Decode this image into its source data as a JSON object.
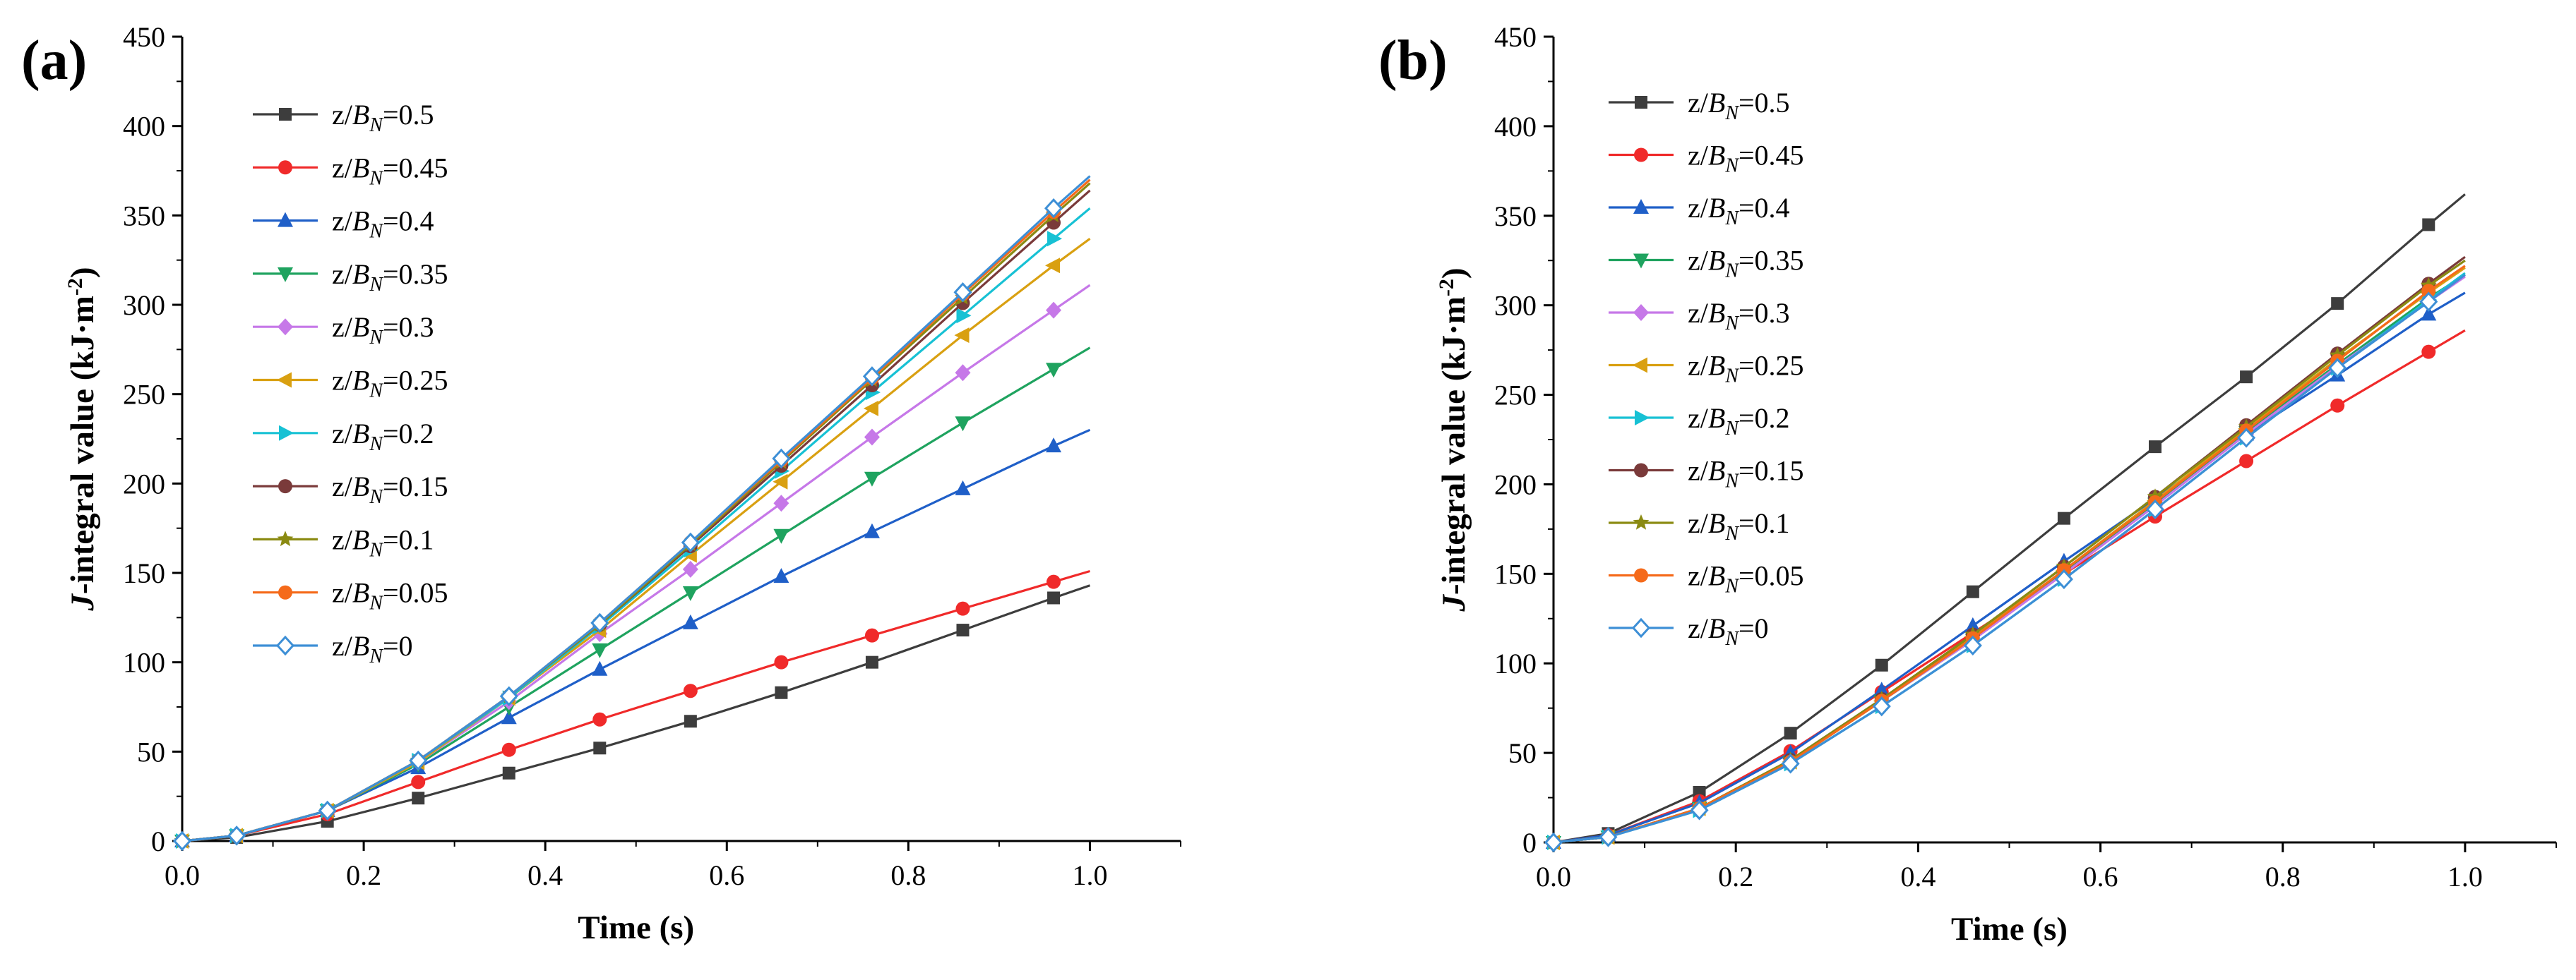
{
  "chart_data": [
    {
      "type": "line",
      "panel_label": "(a)",
      "title": "",
      "xlabel": "Time (s)",
      "ylabel_italic": "J",
      "ylabel_main": "-integral value (kJ·m",
      "ylabel_sup": "-2",
      "ylabel_close": ")",
      "xlim": [
        0,
        1.1
      ],
      "ylim": [
        0,
        450
      ],
      "x_ticks": [
        0.0,
        0.2,
        0.4,
        0.6,
        0.8,
        1.0
      ],
      "x_tick_labels": [
        "0.0",
        "0.2",
        "0.4",
        "0.6",
        "0.8",
        "1.0"
      ],
      "y_ticks": [
        0,
        50,
        100,
        150,
        200,
        250,
        300,
        350,
        400,
        450
      ],
      "y_tick_labels": [
        "0",
        "50",
        "100",
        "150",
        "200",
        "250",
        "300",
        "350",
        "400",
        "450"
      ],
      "x": [
        0,
        0.06,
        0.16,
        0.26,
        0.36,
        0.46,
        0.56,
        0.66,
        0.76,
        0.86,
        0.96,
        1.0
      ],
      "legend_position": "top-left",
      "series": [
        {
          "legend_prefix": "z/",
          "legend_var": "B",
          "legend_sub": "N",
          "legend_suffix": "=0.5",
          "color": "#3d3d3d",
          "marker": "square",
          "values": [
            0,
            2,
            11,
            24,
            38,
            52,
            67,
            83,
            100,
            118,
            136,
            143
          ]
        },
        {
          "legend_prefix": "z/",
          "legend_var": "B",
          "legend_sub": "N",
          "legend_suffix": "=0.45",
          "color": "#f02a2a",
          "marker": "circle",
          "values": [
            0,
            3,
            15,
            33,
            51,
            68,
            84,
            100,
            115,
            130,
            145,
            151
          ]
        },
        {
          "legend_prefix": "z/",
          "legend_var": "B",
          "legend_sub": "N",
          "legend_suffix": "=0.4",
          "color": "#1f5fc8",
          "marker": "triangle-up",
          "values": [
            0,
            3,
            17,
            41,
            69,
            96,
            122,
            148,
            173,
            197,
            221,
            230
          ]
        },
        {
          "legend_prefix": "z/",
          "legend_var": "B",
          "legend_sub": "N",
          "legend_suffix": "=0.35",
          "color": "#1fa35f",
          "marker": "triangle-down",
          "values": [
            0,
            3,
            17,
            43,
            75,
            107,
            139,
            171,
            203,
            234,
            264,
            276
          ]
        },
        {
          "legend_prefix": "z/",
          "legend_var": "B",
          "legend_sub": "N",
          "legend_suffix": "=0.3",
          "color": "#c678e8",
          "marker": "diamond",
          "values": [
            0,
            3,
            17,
            44,
            78,
            116,
            152,
            189,
            226,
            262,
            297,
            311
          ]
        },
        {
          "legend_prefix": "z/",
          "legend_var": "B",
          "legend_sub": "N",
          "legend_suffix": "=0.25",
          "color": "#d9a011",
          "marker": "triangle-left",
          "values": [
            0,
            3,
            17,
            44,
            80,
            118,
            160,
            201,
            242,
            283,
            322,
            337
          ]
        },
        {
          "legend_prefix": "z/",
          "legend_var": "B",
          "legend_sub": "N",
          "legend_suffix": "=0.2",
          "color": "#17c1d4",
          "marker": "triangle-right",
          "values": [
            0,
            3,
            17,
            45,
            80,
            120,
            163,
            207,
            251,
            294,
            337,
            354
          ]
        },
        {
          "legend_prefix": "z/",
          "legend_var": "B",
          "legend_sub": "N",
          "legend_suffix": "=0.15",
          "color": "#7a3a3a",
          "marker": "circle",
          "values": [
            0,
            3,
            17,
            45,
            81,
            121,
            165,
            210,
            255,
            301,
            346,
            364
          ]
        },
        {
          "legend_prefix": "z/",
          "legend_var": "B",
          "legend_sub": "N",
          "legend_suffix": "=0.1",
          "color": "#8a8a12",
          "marker": "star",
          "values": [
            0,
            3,
            17,
            45,
            81,
            121,
            166,
            212,
            258,
            304,
            350,
            368
          ]
        },
        {
          "legend_prefix": "z/",
          "legend_var": "B",
          "legend_sub": "N",
          "legend_suffix": "=0.05",
          "color": "#f56a1a",
          "marker": "circle",
          "values": [
            0,
            3,
            17,
            45,
            81,
            122,
            167,
            213,
            259,
            306,
            352,
            370
          ]
        },
        {
          "legend_prefix": "z/",
          "legend_var": "B",
          "legend_sub": "N",
          "legend_suffix": "=0",
          "color": "#3d8fd6",
          "marker": "diamond-open",
          "values": [
            0,
            3,
            17,
            45,
            81,
            122,
            167,
            214,
            260,
            307,
            354,
            372
          ]
        }
      ]
    },
    {
      "type": "line",
      "panel_label": "(b)",
      "title": "",
      "xlabel": "Time (s)",
      "ylabel_italic": "J",
      "ylabel_main": "-integral value (kJ·m",
      "ylabel_sup": "-2",
      "ylabel_close": ")",
      "xlim": [
        0,
        1.1
      ],
      "ylim": [
        0,
        450
      ],
      "x_ticks": [
        0.0,
        0.2,
        0.4,
        0.6,
        0.8,
        1.0
      ],
      "x_tick_labels": [
        "0.0",
        "0.2",
        "0.4",
        "0.6",
        "0.8",
        "1.0"
      ],
      "y_ticks": [
        0,
        50,
        100,
        150,
        200,
        250,
        300,
        350,
        400,
        450
      ],
      "y_tick_labels": [
        "0",
        "50",
        "100",
        "150",
        "200",
        "250",
        "300",
        "350",
        "400",
        "450"
      ],
      "x": [
        0,
        0.06,
        0.16,
        0.26,
        0.36,
        0.46,
        0.56,
        0.66,
        0.76,
        0.86,
        0.96,
        1.0
      ],
      "legend_position": "top-left",
      "series": [
        {
          "legend_prefix": "z/",
          "legend_var": "B",
          "legend_sub": "N",
          "legend_suffix": "=0.5",
          "color": "#3d3d3d",
          "marker": "square",
          "values": [
            0,
            5,
            28,
            61,
            99,
            140,
            181,
            221,
            260,
            301,
            345,
            362
          ]
        },
        {
          "legend_prefix": "z/",
          "legend_var": "B",
          "legend_sub": "N",
          "legend_suffix": "=0.45",
          "color": "#f02a2a",
          "marker": "circle",
          "values": [
            0,
            4,
            23,
            51,
            84,
            117,
            150,
            182,
            213,
            244,
            274,
            286
          ]
        },
        {
          "legend_prefix": "z/",
          "legend_var": "B",
          "legend_sub": "N",
          "legend_suffix": "=0.4",
          "color": "#1f5fc8",
          "marker": "triangle-up",
          "values": [
            0,
            4,
            22,
            50,
            85,
            121,
            157,
            192,
            228,
            261,
            295,
            307
          ]
        },
        {
          "legend_prefix": "z/",
          "legend_var": "B",
          "legend_sub": "N",
          "legend_suffix": "=0.35",
          "color": "#1fa35f",
          "marker": "triangle-down",
          "values": [
            0,
            3,
            19,
            45,
            79,
            113,
            151,
            189,
            229,
            267,
            304,
            317
          ]
        },
        {
          "legend_prefix": "z/",
          "legend_var": "B",
          "legend_sub": "N",
          "legend_suffix": "=0.3",
          "color": "#c678e8",
          "marker": "diamond",
          "values": [
            0,
            3,
            19,
            45,
            79,
            113,
            150,
            188,
            228,
            266,
            302,
            316
          ]
        },
        {
          "legend_prefix": "z/",
          "legend_var": "B",
          "legend_sub": "N",
          "legend_suffix": "=0.25",
          "color": "#d9a011",
          "marker": "triangle-left",
          "values": [
            0,
            3,
            19,
            45,
            79,
            115,
            152,
            191,
            231,
            270,
            307,
            321
          ]
        },
        {
          "legend_prefix": "z/",
          "legend_var": "B",
          "legend_sub": "N",
          "legend_suffix": "=0.2",
          "color": "#17c1d4",
          "marker": "triangle-right",
          "values": [
            0,
            3,
            18,
            44,
            76,
            110,
            147,
            186,
            226,
            265,
            303,
            318
          ]
        },
        {
          "legend_prefix": "z/",
          "legend_var": "B",
          "legend_sub": "N",
          "legend_suffix": "=0.15",
          "color": "#7a3a3a",
          "marker": "circle",
          "values": [
            0,
            3,
            19,
            46,
            80,
            116,
            154,
            193,
            233,
            273,
            312,
            327
          ]
        },
        {
          "legend_prefix": "z/",
          "legend_var": "B",
          "legend_sub": "N",
          "legend_suffix": "=0.1",
          "color": "#8a8a12",
          "marker": "star",
          "values": [
            0,
            3,
            19,
            46,
            80,
            116,
            154,
            193,
            232,
            272,
            311,
            325
          ]
        },
        {
          "legend_prefix": "z/",
          "legend_var": "B",
          "legend_sub": "N",
          "legend_suffix": "=0.05",
          "color": "#f56a1a",
          "marker": "circle",
          "values": [
            0,
            3,
            19,
            45,
            79,
            114,
            152,
            190,
            230,
            269,
            308,
            322
          ]
        },
        {
          "legend_prefix": "z/",
          "legend_var": "B",
          "legend_sub": "N",
          "legend_suffix": "=0",
          "color": "#3d8fd6",
          "marker": "diamond-open",
          "values": [
            0,
            3,
            18,
            44,
            76,
            110,
            147,
            186,
            226,
            265,
            302,
            317
          ]
        }
      ]
    }
  ]
}
